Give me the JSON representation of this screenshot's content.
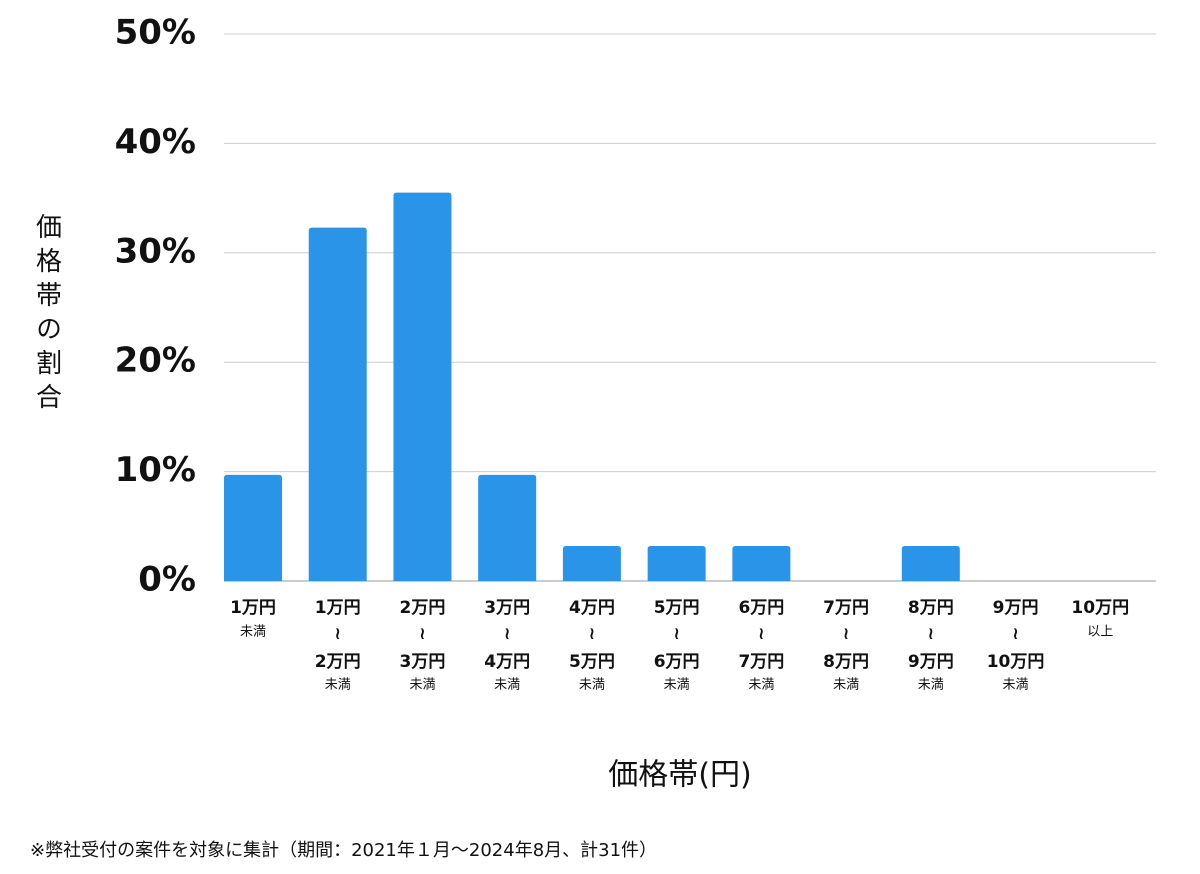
{
  "chart_data": {
    "type": "bar",
    "y_label": "価格帯の割合",
    "x_label": "価格帯(円)",
    "footnote": "※弊社受付の案件を対象に集計（期間：2021年１月〜2024年8月、計31件）",
    "categories": [
      [
        "1万円",
        "未満"
      ],
      [
        "1万円",
        "≀",
        "2万円",
        "未満"
      ],
      [
        "2万円",
        "≀",
        "3万円",
        "未満"
      ],
      [
        "3万円",
        "≀",
        "4万円",
        "未満"
      ],
      [
        "4万円",
        "≀",
        "5万円",
        "未満"
      ],
      [
        "5万円",
        "≀",
        "6万円",
        "未満"
      ],
      [
        "6万円",
        "≀",
        "7万円",
        "未満"
      ],
      [
        "7万円",
        "≀",
        "8万円",
        "未満"
      ],
      [
        "8万円",
        "≀",
        "9万円",
        "未満"
      ],
      [
        "9万円",
        "≀",
        "10万円",
        "未満"
      ],
      [
        "10万円",
        "以上"
      ]
    ],
    "values": [
      9.7,
      32.3,
      35.5,
      9.7,
      3.2,
      3.2,
      3.2,
      0,
      3.2,
      0,
      0
    ],
    "color": "#2a95e8",
    "ylim": [
      0,
      50
    ],
    "yticks": [
      {
        "value": 0,
        "label": "0%"
      },
      {
        "value": 10,
        "label": "10%"
      },
      {
        "value": 20,
        "label": "20%"
      },
      {
        "value": 30,
        "label": "30%"
      },
      {
        "value": 40,
        "label": "40%"
      },
      {
        "value": 50,
        "label": "50%"
      }
    ],
    "grid": true
  }
}
